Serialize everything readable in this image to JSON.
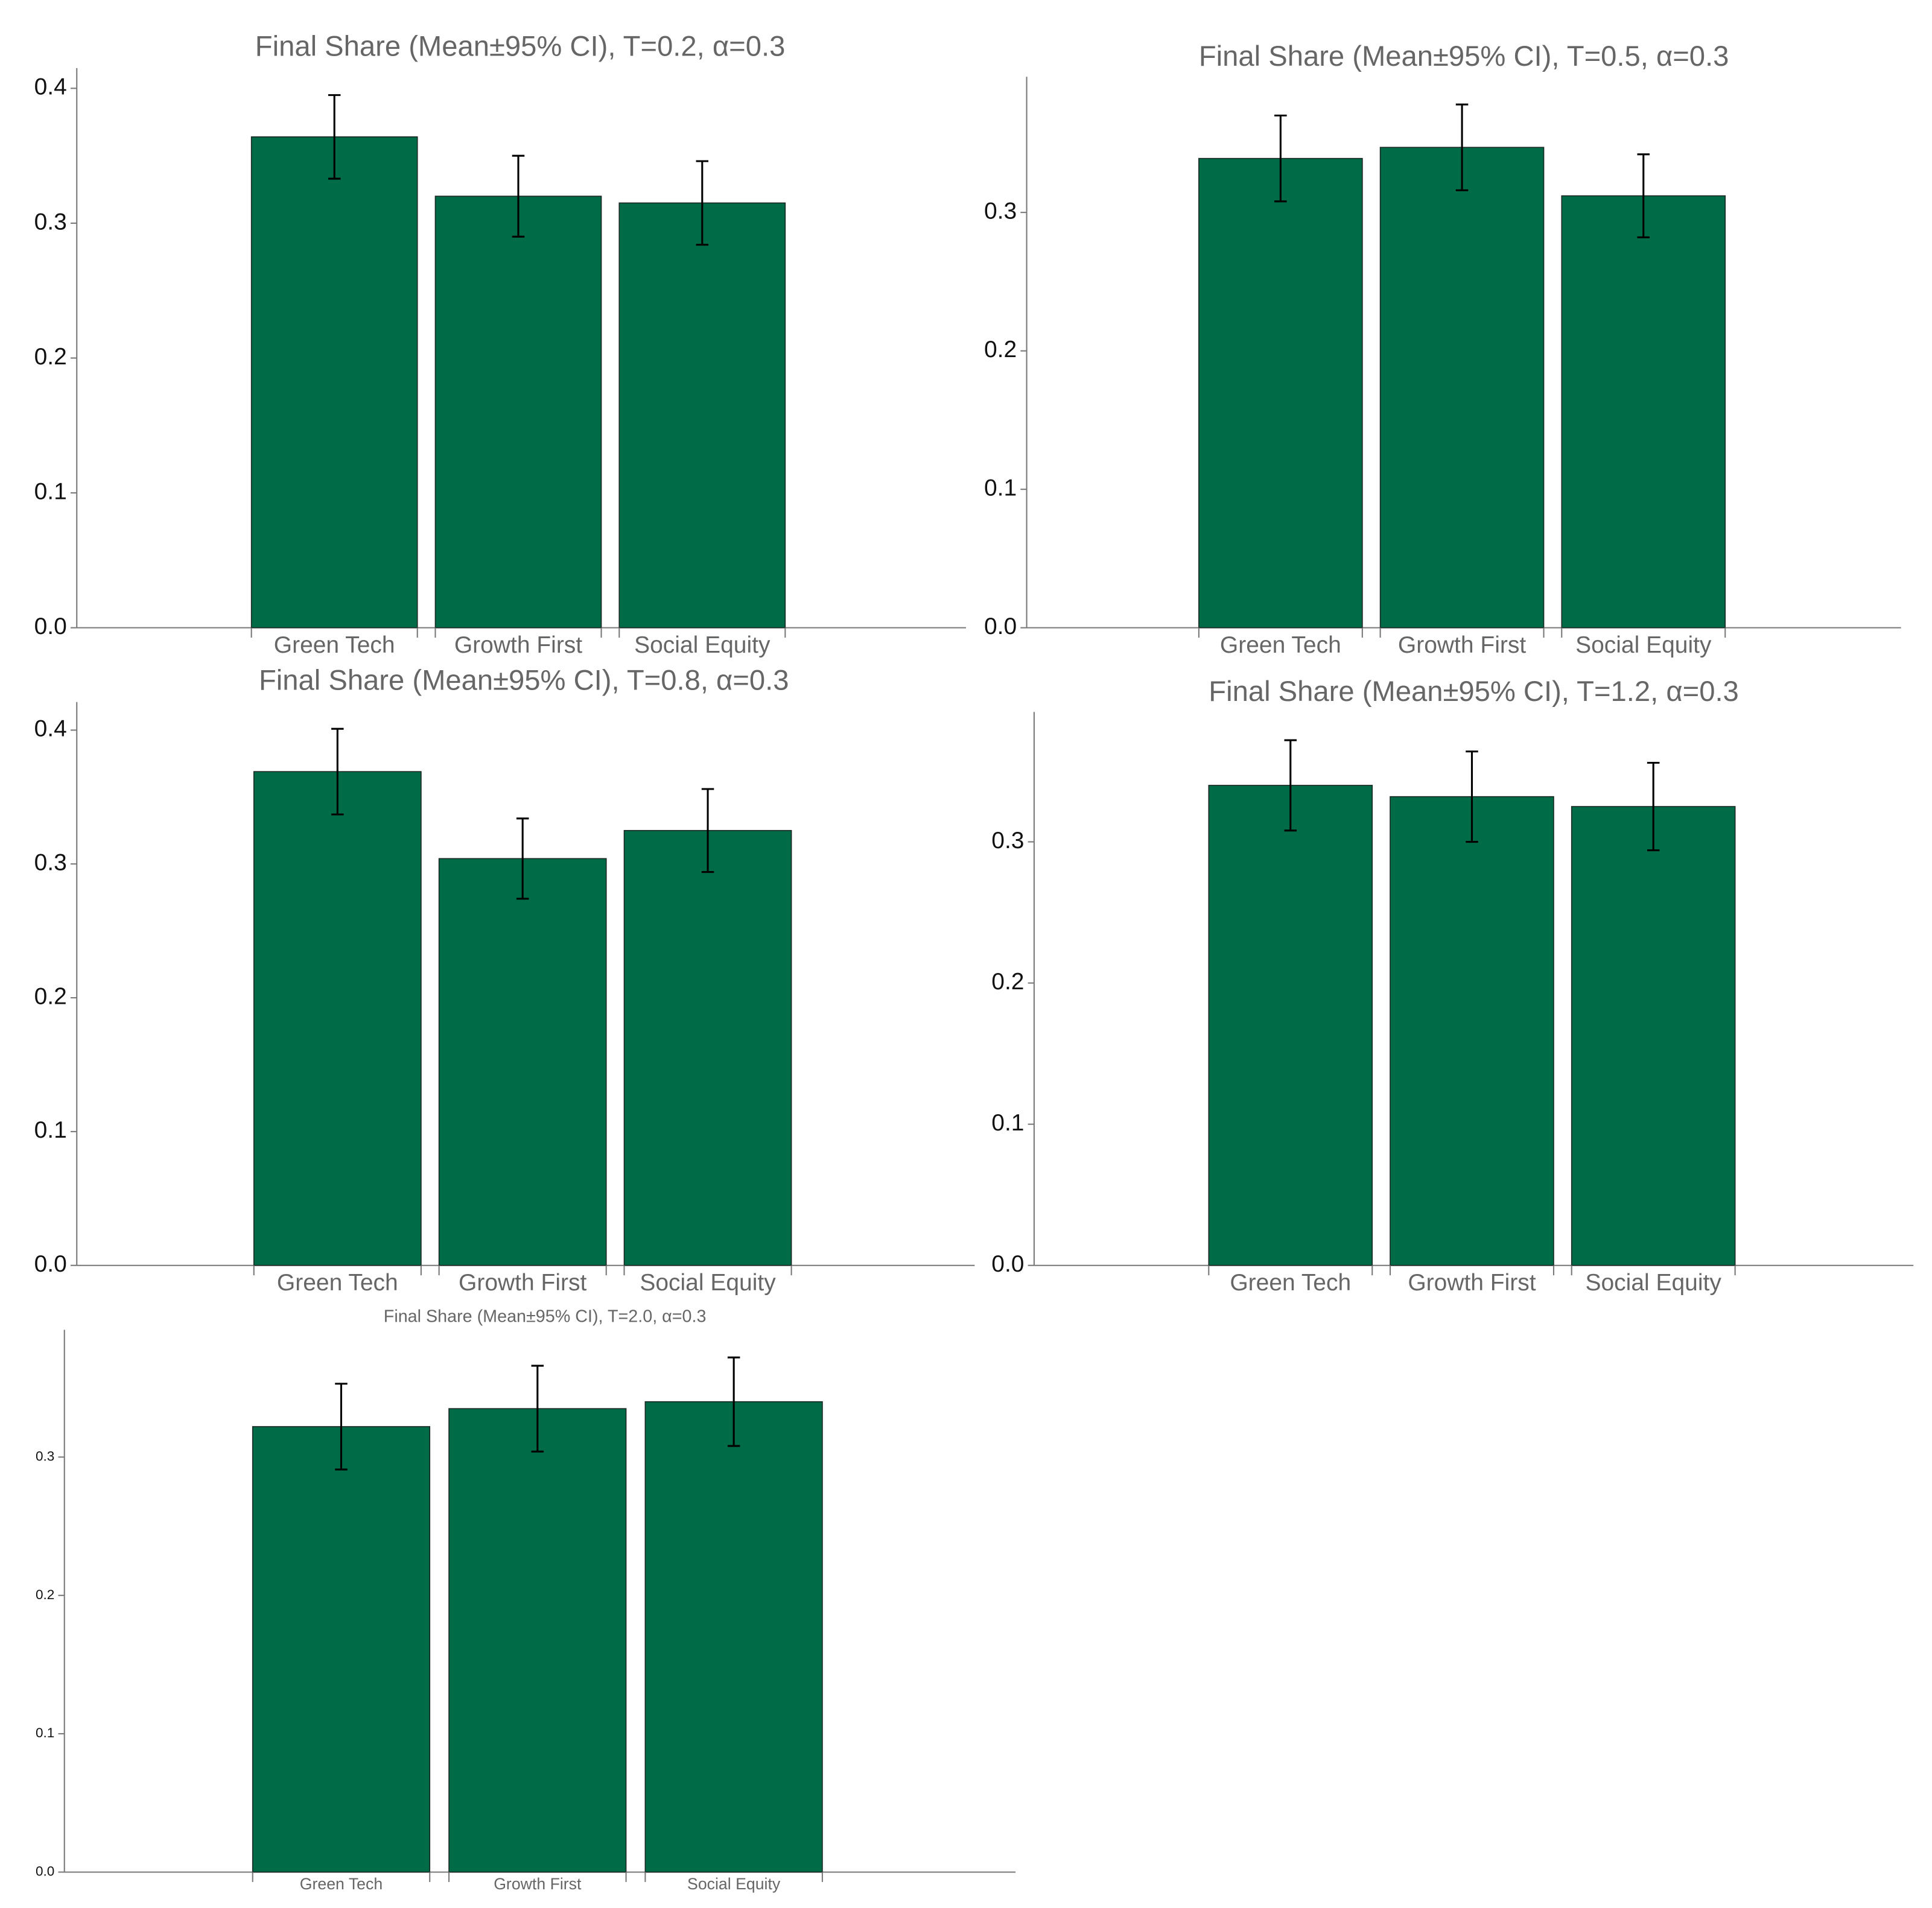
{
  "chart_data": [
    {
      "type": "bar",
      "title": "Final Share (Mean±95% CI), T=0.2, α=0.3",
      "categories": [
        "Green Tech",
        "Growth First",
        "Social Equity"
      ],
      "values": [
        0.364,
        0.32,
        0.315
      ],
      "errors": [
        0.031,
        0.03,
        0.031
      ],
      "color": "#006b47",
      "ylim": [
        0,
        0.415
      ],
      "yticks": [
        {
          "value": 0,
          "label": "0.0"
        },
        0.1,
        0.2,
        0.3,
        0.4
      ]
    },
    {
      "type": "bar",
      "title": "Final Share (Mean±95% CI), T=0.5, α=0.3",
      "categories": [
        "Green Tech",
        "Growth First",
        "Social Equity"
      ],
      "values": [
        0.339,
        0.347,
        0.312
      ],
      "errors": [
        0.031,
        0.031,
        0.03
      ],
      "color": "#006b47",
      "ylim": [
        0,
        0.398
      ],
      "yticks": [
        {
          "value": 0,
          "label": "0.0"
        },
        0.1,
        0.2,
        0.3
      ]
    },
    {
      "type": "bar",
      "title": "Final Share (Mean±95% CI), T=0.8, α=0.3",
      "categories": [
        "Green Tech",
        "Growth First",
        "Social Equity"
      ],
      "values": [
        0.369,
        0.304,
        0.325
      ],
      "errors": [
        0.032,
        0.03,
        0.031
      ],
      "color": "#006b47",
      "ylim": [
        0,
        0.421
      ],
      "yticks": [
        {
          "value": 0,
          "label": "0.0"
        },
        0.1,
        0.2,
        0.3,
        0.4
      ]
    },
    {
      "type": "bar",
      "title": "Final Share (Mean±95% CI), T=1.2, α=0.3",
      "categories": [
        "Green Tech",
        "Growth First",
        "Social Equity"
      ],
      "values": [
        0.34,
        0.332,
        0.325
      ],
      "errors": [
        0.032,
        0.032,
        0.031
      ],
      "color": "#006b47",
      "ylim": [
        0,
        0.392
      ],
      "yticks": [
        {
          "value": 0,
          "label": "0.0"
        },
        0.1,
        0.2,
        0.3
      ]
    },
    {
      "type": "bar",
      "title": "Final Share (Mean±95% CI), T=2.0, α=0.3",
      "categories": [
        "Green Tech",
        "Growth First",
        "Social Equity"
      ],
      "values": [
        0.322,
        0.335,
        0.34
      ],
      "errors": [
        0.031,
        0.031,
        0.032
      ],
      "color": "#006b47",
      "ylim": [
        0,
        0.392
      ],
      "yticks": [
        {
          "value": 0,
          "label": "0.0"
        },
        0.1,
        0.2,
        0.3
      ]
    }
  ]
}
